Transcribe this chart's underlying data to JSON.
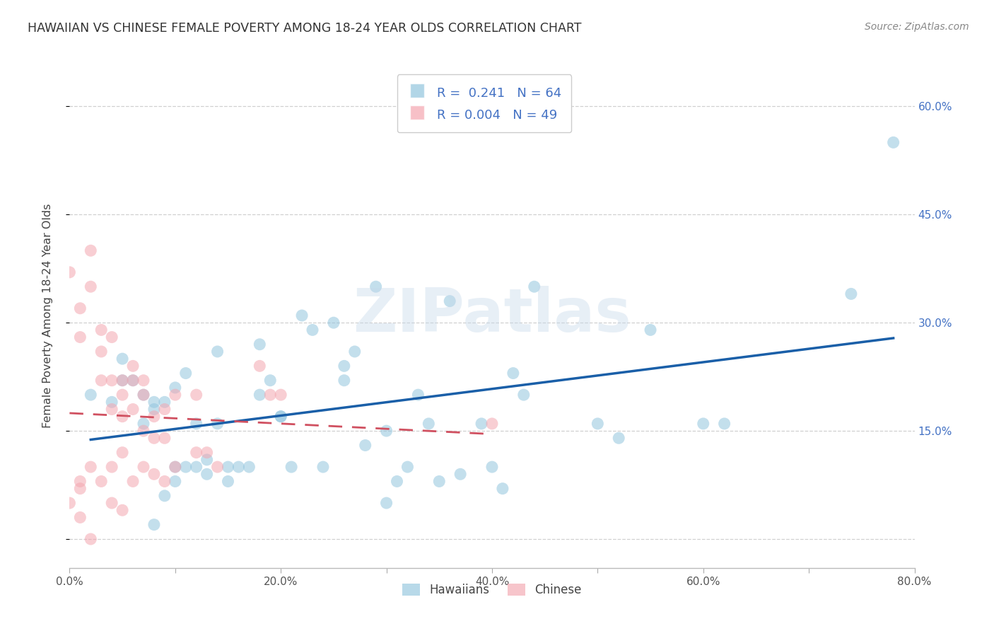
{
  "title": "HAWAIIAN VS CHINESE FEMALE POVERTY AMONG 18-24 YEAR OLDS CORRELATION CHART",
  "source": "Source: ZipAtlas.com",
  "ylabel": "Female Poverty Among 18-24 Year Olds",
  "xlim": [
    0.0,
    0.8
  ],
  "ylim": [
    -0.04,
    0.66
  ],
  "xticks": [
    0.0,
    0.1,
    0.2,
    0.3,
    0.4,
    0.5,
    0.6,
    0.7,
    0.8
  ],
  "xticklabels": [
    "0.0%",
    "",
    "20.0%",
    "",
    "40.0%",
    "",
    "60.0%",
    "",
    "80.0%"
  ],
  "ytick_positions": [
    0.0,
    0.15,
    0.3,
    0.45,
    0.6
  ],
  "ytick_labels_right": [
    "",
    "15.0%",
    "30.0%",
    "45.0%",
    "60.0%"
  ],
  "grid_color": "#d0d0d0",
  "background_color": "#ffffff",
  "hawaiian_color": "#92c5de",
  "chinese_color": "#f4a6b0",
  "hawaiian_line_color": "#1a5fa8",
  "chinese_line_color": "#d05060",
  "hawaiian_R": "0.241",
  "hawaiian_N": "64",
  "chinese_R": "0.004",
  "chinese_N": "49",
  "watermark": "ZIPatlas",
  "hawaiian_x": [
    0.02,
    0.04,
    0.05,
    0.05,
    0.06,
    0.07,
    0.07,
    0.08,
    0.08,
    0.08,
    0.09,
    0.09,
    0.1,
    0.1,
    0.1,
    0.11,
    0.11,
    0.12,
    0.12,
    0.13,
    0.13,
    0.14,
    0.14,
    0.15,
    0.15,
    0.16,
    0.17,
    0.18,
    0.18,
    0.19,
    0.2,
    0.2,
    0.21,
    0.22,
    0.23,
    0.24,
    0.25,
    0.26,
    0.26,
    0.27,
    0.28,
    0.29,
    0.3,
    0.3,
    0.31,
    0.32,
    0.33,
    0.34,
    0.35,
    0.36,
    0.37,
    0.39,
    0.4,
    0.41,
    0.42,
    0.43,
    0.44,
    0.5,
    0.52,
    0.55,
    0.6,
    0.62,
    0.74,
    0.78
  ],
  "hawaiian_y": [
    0.2,
    0.19,
    0.22,
    0.25,
    0.22,
    0.16,
    0.2,
    0.02,
    0.18,
    0.19,
    0.06,
    0.19,
    0.08,
    0.1,
    0.21,
    0.1,
    0.23,
    0.1,
    0.16,
    0.11,
    0.09,
    0.16,
    0.26,
    0.08,
    0.1,
    0.1,
    0.1,
    0.27,
    0.2,
    0.22,
    0.17,
    0.17,
    0.1,
    0.31,
    0.29,
    0.1,
    0.3,
    0.24,
    0.22,
    0.26,
    0.13,
    0.35,
    0.05,
    0.15,
    0.08,
    0.1,
    0.2,
    0.16,
    0.08,
    0.33,
    0.09,
    0.16,
    0.1,
    0.07,
    0.23,
    0.2,
    0.35,
    0.16,
    0.14,
    0.29,
    0.16,
    0.16,
    0.34,
    0.55
  ],
  "chinese_x": [
    0.0,
    0.0,
    0.01,
    0.01,
    0.01,
    0.01,
    0.01,
    0.02,
    0.02,
    0.02,
    0.02,
    0.03,
    0.03,
    0.03,
    0.03,
    0.04,
    0.04,
    0.04,
    0.04,
    0.04,
    0.05,
    0.05,
    0.05,
    0.05,
    0.05,
    0.06,
    0.06,
    0.06,
    0.06,
    0.07,
    0.07,
    0.07,
    0.07,
    0.08,
    0.08,
    0.08,
    0.09,
    0.09,
    0.09,
    0.1,
    0.1,
    0.12,
    0.12,
    0.13,
    0.14,
    0.18,
    0.19,
    0.2,
    0.4
  ],
  "chinese_y": [
    0.37,
    0.05,
    0.32,
    0.28,
    0.03,
    0.07,
    0.08,
    0.4,
    0.35,
    0.0,
    0.1,
    0.29,
    0.26,
    0.22,
    0.08,
    0.28,
    0.22,
    0.18,
    0.1,
    0.05,
    0.22,
    0.2,
    0.17,
    0.12,
    0.04,
    0.24,
    0.22,
    0.18,
    0.08,
    0.22,
    0.2,
    0.15,
    0.1,
    0.17,
    0.14,
    0.09,
    0.18,
    0.14,
    0.08,
    0.2,
    0.1,
    0.2,
    0.12,
    0.12,
    0.1,
    0.24,
    0.2,
    0.2,
    0.16
  ]
}
